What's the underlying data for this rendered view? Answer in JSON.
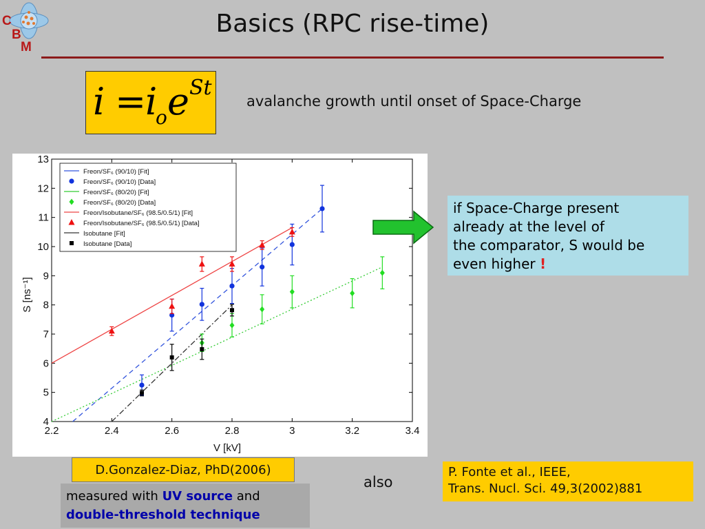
{
  "slide": {
    "title": "Basics (RPC rise-time)",
    "logo_letters": [
      "C",
      "B",
      "M"
    ],
    "formula": {
      "lhs": "i",
      "eq": "=",
      "i0": "i",
      "sub": "o",
      "base": "e",
      "exp": "St"
    },
    "growth_text": "avalanche growth until onset of Space-Charge",
    "note": {
      "lines": [
        "if Space-Charge present",
        "already at the level of",
        "the comparator, S would be",
        "even higher"
      ],
      "exclamation": "!"
    },
    "ref1": "D.Gonzalez-Diaz, PhD(2006)",
    "measured": {
      "p1": "measured with ",
      "uv": "UV source",
      "p2": " and",
      "technique": "double-threshold technique"
    },
    "also": "also",
    "ref2": {
      "line1": "P. Fonte et al., IEEE,",
      "line2": "Trans. Nucl. Sci. 49,3(2002)881"
    },
    "colors": {
      "background": "#c0c0c0",
      "title_rule": "#8b1a1a",
      "highlight": "#ffcc00",
      "note_bg": "#aedde8",
      "arrow": "#22c22e",
      "emphasis_text": "#0000aa"
    }
  },
  "chart_data": {
    "type": "scatter",
    "xlabel": "V [kV]",
    "ylabel": "S [ns⁻¹]",
    "xlim": [
      2.2,
      3.4
    ],
    "ylim": [
      4,
      13
    ],
    "xticks": [
      "2.2",
      "2.4",
      "2.6",
      "2.8",
      "3",
      "3.2",
      "3.4"
    ],
    "yticks": [
      "4",
      "5",
      "6",
      "7",
      "8",
      "9",
      "10",
      "11",
      "12",
      "13"
    ],
    "grid": false,
    "legend_position": "top-left",
    "legend": [
      {
        "label": "Freon/SF₆ (90/10) [Fit]",
        "color": "#3355dd",
        "kind": "line"
      },
      {
        "label": "Freon/SF₆ (90/10) [Data]",
        "color": "#1133dd",
        "kind": "circle"
      },
      {
        "label": "Freon/SF₆ (80/20) [Fit]",
        "color": "#33cc33",
        "kind": "line"
      },
      {
        "label": "Freon/SF₆ (80/20) [Data]",
        "color": "#22dd22",
        "kind": "diamond"
      },
      {
        "label": "Freon/Isobutane/SF₆ (98.5/0.5/1) [Fit]",
        "color": "#ee4444",
        "kind": "line"
      },
      {
        "label": "Freon/Isobutane/SF₆ (98.5/0.5/1) [Data]",
        "color": "#ee1111",
        "kind": "triangle"
      },
      {
        "label": "Isobutane [Fit]",
        "color": "#333333",
        "kind": "line"
      },
      {
        "label": "Isobutane [Data]",
        "color": "#000000",
        "kind": "square"
      }
    ],
    "series": [
      {
        "color": "#1133dd",
        "marker": "circle",
        "points": [
          [
            2.5,
            5.25,
            0.35
          ],
          [
            2.6,
            7.65,
            0.55
          ],
          [
            2.7,
            8.02,
            0.55
          ],
          [
            2.8,
            8.65,
            0.6
          ],
          [
            2.9,
            9.3,
            0.65
          ],
          [
            3.0,
            10.07,
            0.7
          ],
          [
            3.1,
            11.3,
            0.8
          ]
        ],
        "fit": {
          "from": [
            2.27,
            4.0
          ],
          "to": [
            3.1,
            11.3
          ],
          "dash": "7,5"
        }
      },
      {
        "color": "#22dd22",
        "marker": "diamond",
        "points": [
          [
            2.7,
            6.7,
            0.3
          ],
          [
            2.8,
            7.3,
            0.4
          ],
          [
            2.9,
            7.85,
            0.5
          ],
          [
            3.0,
            8.45,
            0.55
          ],
          [
            3.2,
            8.4,
            0.5
          ],
          [
            3.3,
            9.1,
            0.55
          ]
        ],
        "fit": {
          "from": [
            2.2,
            4.0
          ],
          "to": [
            3.3,
            9.3
          ],
          "dash": "2,3"
        }
      },
      {
        "color": "#ee1111",
        "marker": "triangle",
        "points": [
          [
            2.4,
            7.1,
            0.15
          ],
          [
            2.6,
            7.95,
            0.25
          ],
          [
            2.7,
            9.4,
            0.25
          ],
          [
            2.8,
            9.4,
            0.25
          ],
          [
            2.9,
            10.05,
            0.15
          ],
          [
            3.0,
            10.5,
            0.15
          ]
        ],
        "fit": {
          "from": [
            2.2,
            6.0
          ],
          "to": [
            3.0,
            10.65
          ],
          "dash": ""
        }
      },
      {
        "color": "#000000",
        "marker": "square",
        "points": [
          [
            2.5,
            4.98,
            0.1
          ],
          [
            2.6,
            6.2,
            0.45
          ],
          [
            2.7,
            6.48,
            0.35
          ],
          [
            2.8,
            7.82,
            0.2
          ]
        ],
        "fit": {
          "from": [
            2.4,
            4.0
          ],
          "to": [
            2.8,
            8.0
          ],
          "dash": "8,3,2,3"
        }
      }
    ]
  }
}
